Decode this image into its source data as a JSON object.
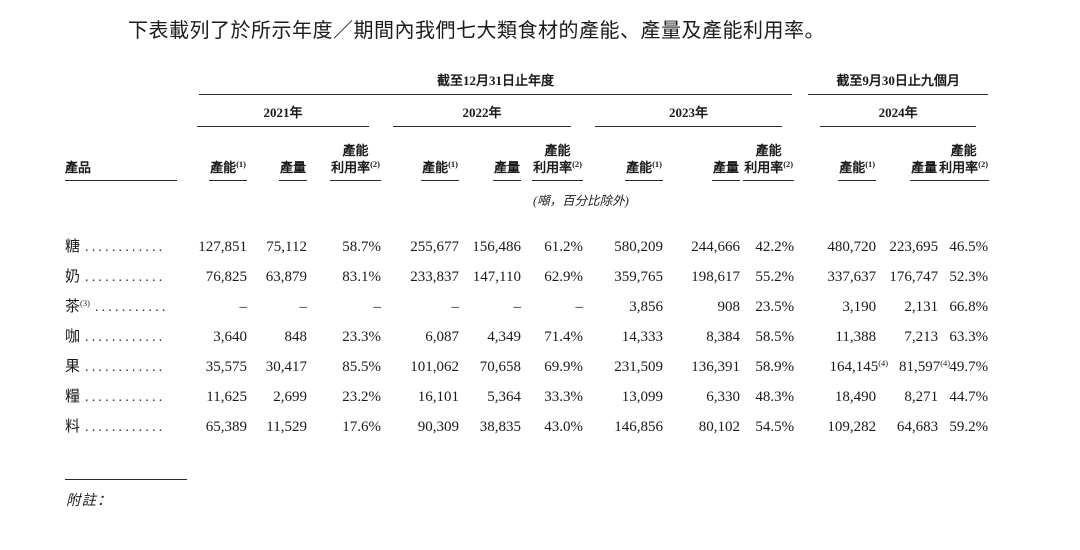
{
  "title": "下表載列了於所示年度／期間內我們七大類食材的產能、產量及產能利用率。",
  "footnote_label": "附註：",
  "table": {
    "product_header": "產品",
    "unit_note": "(噸，百分比除外)",
    "group1": {
      "label": "截至12月31日止年度",
      "years": [
        "2021年",
        "2022年",
        "2023年"
      ]
    },
    "group2": {
      "label": "截至9月30日止九個月",
      "years": [
        "2024年"
      ]
    },
    "col_capacity": "產能",
    "col_capacity_sup": "(1)",
    "col_volume": "產量",
    "col_util_line1": "產能",
    "col_util_line2": "利用率",
    "col_util_sup": "(2)",
    "rows": [
      {
        "product": "糖",
        "product_sup": "",
        "leader": "............",
        "values": [
          "127,851",
          "75,112",
          "58.7%",
          "255,677",
          "156,486",
          "61.2%",
          "580,209",
          "244,666",
          "42.2%",
          "480,720",
          "223,695",
          "46.5%"
        ],
        "value_sups": [
          "",
          "",
          "",
          "",
          "",
          "",
          "",
          "",
          "",
          "",
          "",
          ""
        ]
      },
      {
        "product": "奶",
        "product_sup": "",
        "leader": "............",
        "values": [
          "76,825",
          "63,879",
          "83.1%",
          "233,837",
          "147,110",
          "62.9%",
          "359,765",
          "198,617",
          "55.2%",
          "337,637",
          "176,747",
          "52.3%"
        ],
        "value_sups": [
          "",
          "",
          "",
          "",
          "",
          "",
          "",
          "",
          "",
          "",
          "",
          ""
        ]
      },
      {
        "product": "茶",
        "product_sup": "(3)",
        "leader": "...........",
        "values": [
          "–",
          "–",
          "–",
          "–",
          "–",
          "–",
          "3,856",
          "908",
          "23.5%",
          "3,190",
          "2,131",
          "66.8%"
        ],
        "value_sups": [
          "",
          "",
          "",
          "",
          "",
          "",
          "",
          "",
          "",
          "",
          "",
          ""
        ]
      },
      {
        "product": "咖",
        "product_sup": "",
        "leader": "............",
        "values": [
          "3,640",
          "848",
          "23.3%",
          "6,087",
          "4,349",
          "71.4%",
          "14,333",
          "8,384",
          "58.5%",
          "11,388",
          "7,213",
          "63.3%"
        ],
        "value_sups": [
          "",
          "",
          "",
          "",
          "",
          "",
          "",
          "",
          "",
          "",
          "",
          ""
        ]
      },
      {
        "product": "果",
        "product_sup": "",
        "leader": "............",
        "values": [
          "35,575",
          "30,417",
          "85.5%",
          "101,062",
          "70,658",
          "69.9%",
          "231,509",
          "136,391",
          "58.9%",
          "164,145",
          "81,597",
          "49.7%"
        ],
        "value_sups": [
          "",
          "",
          "",
          "",
          "",
          "",
          "",
          "",
          "",
          "(4)",
          "(4)",
          ""
        ]
      },
      {
        "product": "糧",
        "product_sup": "",
        "leader": "............",
        "values": [
          "11,625",
          "2,699",
          "23.2%",
          "16,101",
          "5,364",
          "33.3%",
          "13,099",
          "6,330",
          "48.3%",
          "18,490",
          "8,271",
          "44.7%"
        ],
        "value_sups": [
          "",
          "",
          "",
          "",
          "",
          "",
          "",
          "",
          "",
          "",
          "",
          ""
        ]
      },
      {
        "product": "料",
        "product_sup": "",
        "leader": "............",
        "values": [
          "65,389",
          "11,529",
          "17.6%",
          "90,309",
          "38,835",
          "43.0%",
          "146,856",
          "80,102",
          "54.5%",
          "109,282",
          "64,683",
          "59.2%"
        ],
        "value_sups": [
          "",
          "",
          "",
          "",
          "",
          "",
          "",
          "",
          "",
          "",
          "",
          ""
        ]
      }
    ]
  }
}
